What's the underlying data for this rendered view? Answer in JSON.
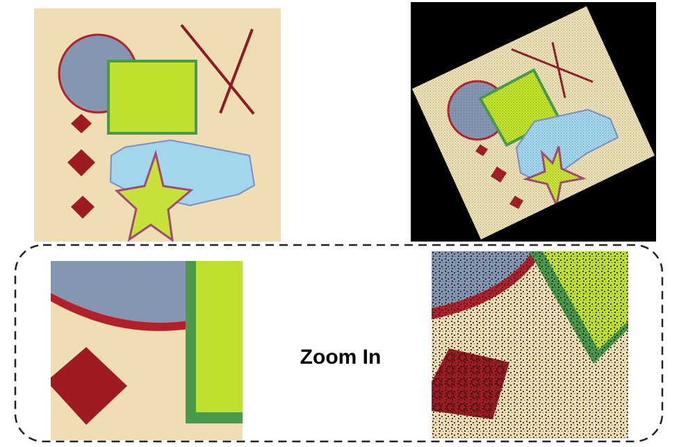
{
  "zoom_label": "Zoom In",
  "colors": {
    "background_beige": "#efdeb4",
    "circle_fill": "#8496b1",
    "outline_red": "#b3202a",
    "rect_fill": "#bfe02c",
    "rect_border": "#4a9a4b",
    "diamond_fill": "#9e1b22",
    "hexagon_fill": "#a3d6ec",
    "star_fill": "#c6e23a",
    "line_color": "#8e1a24",
    "rotated_background": "#000000",
    "dashed_border": "#222222"
  },
  "shapes": [
    "circle",
    "square",
    "crossed-lines",
    "diamonds",
    "hexagon",
    "star"
  ],
  "panels": [
    "original-image",
    "rotated-dithered-image",
    "zoom-original",
    "zoom-dithered"
  ]
}
